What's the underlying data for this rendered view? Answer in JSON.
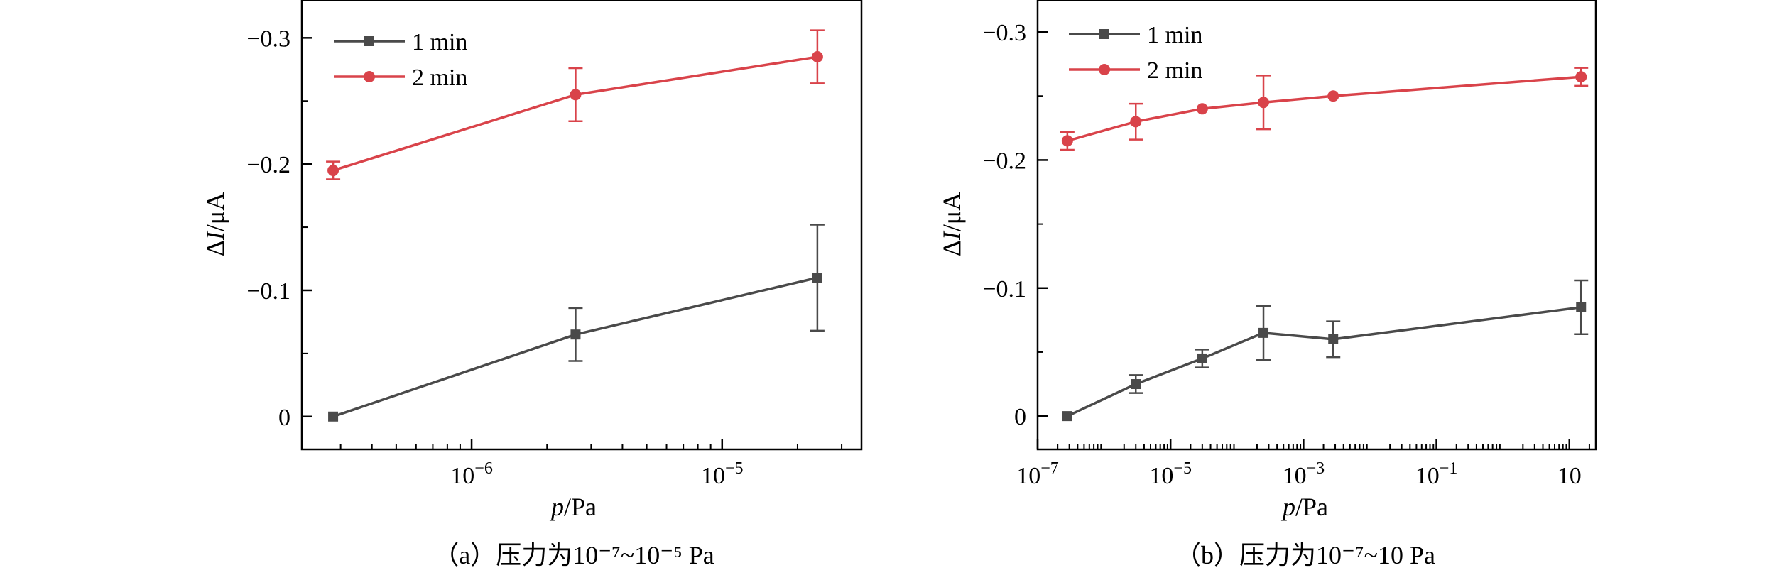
{
  "colors": {
    "series_1min": "#4a4a4a",
    "series_2min": "#d9434a",
    "axis": "#000000"
  },
  "chart_data": [
    {
      "type": "line",
      "caption": "（a）压力为10⁻⁷~10⁻⁵ Pa",
      "xlabel_italic": "p",
      "xlabel_unit": "/Pa",
      "ylabel_italic_prefix": "Δ",
      "ylabel_italic": "I",
      "ylabel_unit": "/μA",
      "x_scale": "log",
      "xlim": [
        2.1e-07,
        3.6e-05
      ],
      "ylim": [
        0.026,
        -0.33
      ],
      "xticks": [
        {
          "value": 1e-06,
          "base": "10",
          "exp": "−6"
        },
        {
          "value": 1e-05,
          "base": "10",
          "exp": "−5"
        }
      ],
      "yticks": [
        {
          "value": 0,
          "label": "0"
        },
        {
          "value": -0.1,
          "label": "−0.1"
        },
        {
          "value": -0.2,
          "label": "−0.2"
        },
        {
          "value": -0.3,
          "label": "−0.3"
        }
      ],
      "legend_position": "top-left",
      "series": [
        {
          "name": "1 min",
          "marker": "square",
          "color": "#4a4a4a",
          "x": [
            2.8e-07,
            2.6e-06,
            2.4e-05
          ],
          "y": [
            0,
            -0.065,
            -0.11
          ],
          "err": [
            0,
            0.021,
            0.042
          ]
        },
        {
          "name": "2 min",
          "marker": "circle",
          "color": "#d9434a",
          "x": [
            2.8e-07,
            2.6e-06,
            2.4e-05
          ],
          "y": [
            -0.195,
            -0.255,
            -0.285
          ],
          "err": [
            0.007,
            0.021,
            0.021
          ]
        }
      ]
    },
    {
      "type": "line",
      "caption": "（b）压力为10⁻⁷~10 Pa",
      "xlabel_italic": "p",
      "xlabel_unit": "/Pa",
      "ylabel_italic_prefix": "Δ",
      "ylabel_italic": "I",
      "ylabel_unit": "/μA",
      "x_scale": "log",
      "xlim": [
        1e-07,
        25
      ],
      "ylim": [
        0.026,
        -0.325
      ],
      "xticks": [
        {
          "value": 1e-07,
          "base": "10",
          "exp": "−7"
        },
        {
          "value": 1e-05,
          "base": "10",
          "exp": "−5"
        },
        {
          "value": 0.001,
          "base": "10",
          "exp": "−3"
        },
        {
          "value": 0.1,
          "base": "10",
          "exp": "−1"
        },
        {
          "value": 10,
          "base": "10",
          "exp": ""
        }
      ],
      "yticks": [
        {
          "value": 0,
          "label": "0"
        },
        {
          "value": -0.1,
          "label": "−0.1"
        },
        {
          "value": -0.2,
          "label": "−0.2"
        },
        {
          "value": -0.3,
          "label": "−0.3"
        }
      ],
      "legend_position": "top-left",
      "series": [
        {
          "name": "1 min",
          "marker": "square",
          "color": "#4a4a4a",
          "x": [
            2.8e-07,
            3e-06,
            3e-05,
            0.00025,
            0.0028,
            15
          ],
          "y": [
            0,
            -0.025,
            -0.045,
            -0.065,
            -0.06,
            -0.085
          ],
          "err": [
            0,
            0.007,
            0.007,
            0.021,
            0.014,
            0.021
          ]
        },
        {
          "name": "2 min",
          "marker": "circle",
          "color": "#d9434a",
          "x": [
            2.8e-07,
            3e-06,
            3e-05,
            0.00025,
            0.0028,
            15
          ],
          "y": [
            -0.215,
            -0.23,
            -0.24,
            -0.245,
            -0.25,
            -0.265
          ],
          "err": [
            0.007,
            0.014,
            0,
            0.021,
            0,
            0.007
          ]
        }
      ]
    }
  ]
}
